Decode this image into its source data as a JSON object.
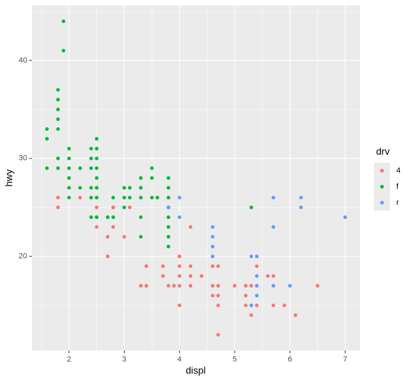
{
  "chart_data": {
    "type": "scatter",
    "x_label": "displ",
    "y_label": "hwy",
    "legend_title": "drv",
    "legend_position": "right",
    "xlim": [
      1.33,
      7.27
    ],
    "ylim": [
      10.4,
      45.6
    ],
    "xticks": [
      2,
      3,
      4,
      5,
      6,
      7
    ],
    "yticks": [
      20,
      30,
      40
    ],
    "grid": true,
    "minor_grid": true,
    "panel_background": "#ebebeb",
    "series": [
      {
        "name": "4",
        "color": "#F8766D",
        "x": [
          1.8,
          1.8,
          2.2,
          2.5,
          2.5,
          2.5,
          2.5,
          2.5,
          2.7,
          2.7,
          2.8,
          2.8,
          3.0,
          3.1,
          3.3,
          3.4,
          3.4,
          3.7,
          3.7,
          3.8,
          3.9,
          4.0,
          4.0,
          4.0,
          4.0,
          4.0,
          4.2,
          4.2,
          4.2,
          4.2,
          4.4,
          4.6,
          4.6,
          4.6,
          4.7,
          4.7,
          4.7,
          4.7,
          4.7,
          5.0,
          5.2,
          5.2,
          5.2,
          5.3,
          5.3,
          5.3,
          5.4,
          5.4,
          5.4,
          5.4,
          5.6,
          5.7,
          5.7,
          5.7,
          5.9,
          6.1,
          6.5
        ],
        "y": [
          26,
          25,
          26,
          27,
          26,
          25,
          24,
          23,
          22,
          20,
          25,
          23,
          22,
          25,
          17,
          19,
          17,
          19,
          18,
          17,
          17,
          20,
          19,
          18,
          17,
          15,
          19,
          18,
          17,
          23,
          18,
          19,
          17,
          16,
          19,
          17,
          16,
          15,
          12,
          17,
          17,
          16,
          15,
          17,
          15,
          14,
          19,
          17,
          16,
          15,
          18,
          18,
          17,
          15,
          15,
          14,
          17
        ]
      },
      {
        "name": "f",
        "color": "#00BA38",
        "x": [
          1.6,
          1.6,
          1.6,
          1.8,
          1.8,
          1.8,
          1.8,
          1.8,
          1.8,
          1.8,
          1.9,
          1.9,
          2.0,
          2.0,
          2.0,
          2.0,
          2.0,
          2.0,
          2.2,
          2.2,
          2.4,
          2.4,
          2.4,
          2.4,
          2.4,
          2.4,
          2.5,
          2.5,
          2.5,
          2.5,
          2.5,
          2.5,
          2.5,
          2.5,
          2.7,
          2.8,
          2.8,
          3.0,
          3.0,
          3.0,
          3.1,
          3.1,
          3.3,
          3.3,
          3.3,
          3.3,
          3.3,
          3.5,
          3.5,
          3.5,
          3.6,
          3.8,
          3.8,
          3.8,
          3.8,
          3.8,
          3.8,
          3.8,
          3.8,
          5.3
        ],
        "y": [
          33,
          32,
          29,
          37,
          36,
          35,
          34,
          33,
          30,
          29,
          44,
          41,
          31,
          30,
          29,
          28,
          27,
          26,
          29,
          27,
          31,
          30,
          29,
          27,
          26,
          24,
          32,
          31,
          30,
          29,
          28,
          27,
          26,
          24,
          24,
          24,
          26,
          27,
          26,
          25,
          27,
          26,
          28,
          27,
          26,
          24,
          22,
          29,
          28,
          26,
          26,
          28,
          27,
          26,
          25,
          24,
          23,
          22,
          21,
          25
        ]
      },
      {
        "name": "r",
        "color": "#619CFF",
        "x": [
          3.8,
          4.0,
          4.0,
          4.6,
          4.6,
          4.6,
          4.6,
          5.3,
          5.3,
          5.4,
          5.4,
          5.4,
          5.4,
          5.7,
          5.7,
          5.7,
          6.0,
          6.2,
          6.2,
          7.0
        ],
        "y": [
          25,
          26,
          24,
          23,
          22,
          21,
          20,
          20,
          15,
          20,
          18,
          17,
          16,
          26,
          23,
          17,
          17,
          26,
          25,
          24
        ]
      }
    ]
  }
}
